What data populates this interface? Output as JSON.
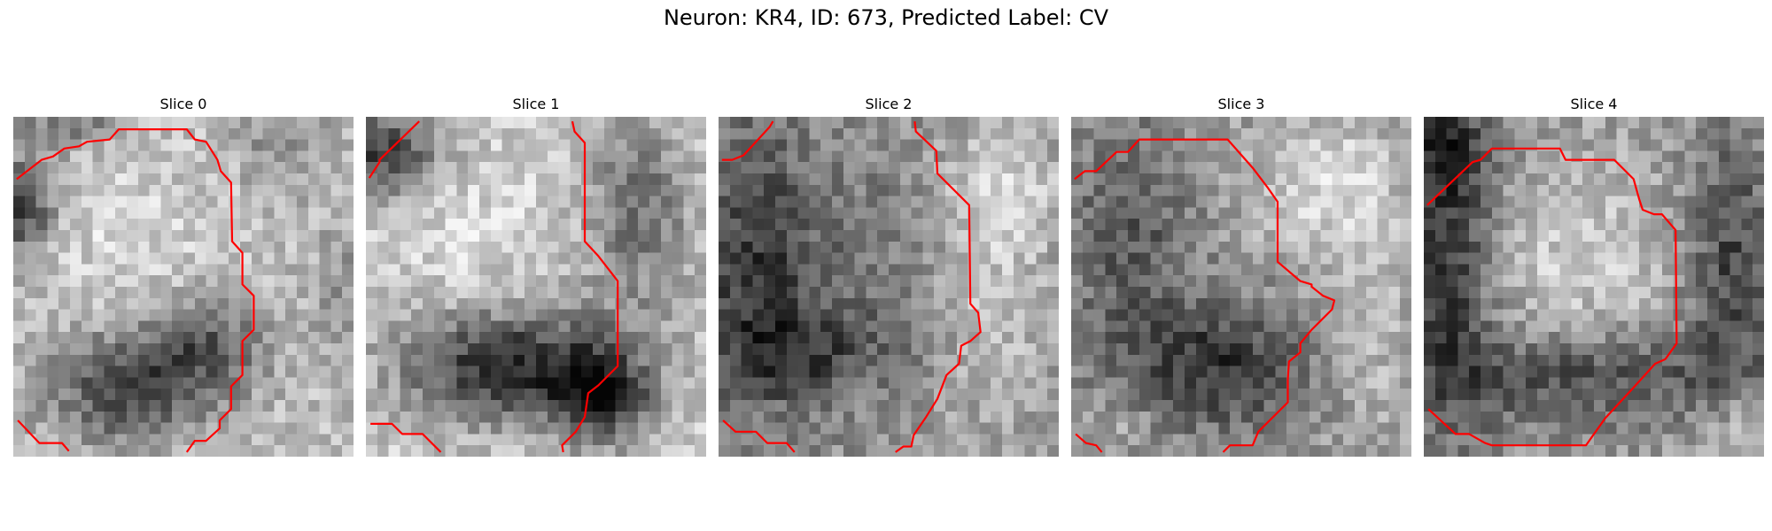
{
  "title": "Neuron: KR4, ID: 673, Predicted Label: CV",
  "contour_color": "#ff0000",
  "colormap": "gray",
  "panels": [
    {
      "title": "Slice 0"
    },
    {
      "title": "Slice 1"
    },
    {
      "title": "Slice 2"
    },
    {
      "title": "Slice 3"
    },
    {
      "title": "Slice 4"
    }
  ]
}
